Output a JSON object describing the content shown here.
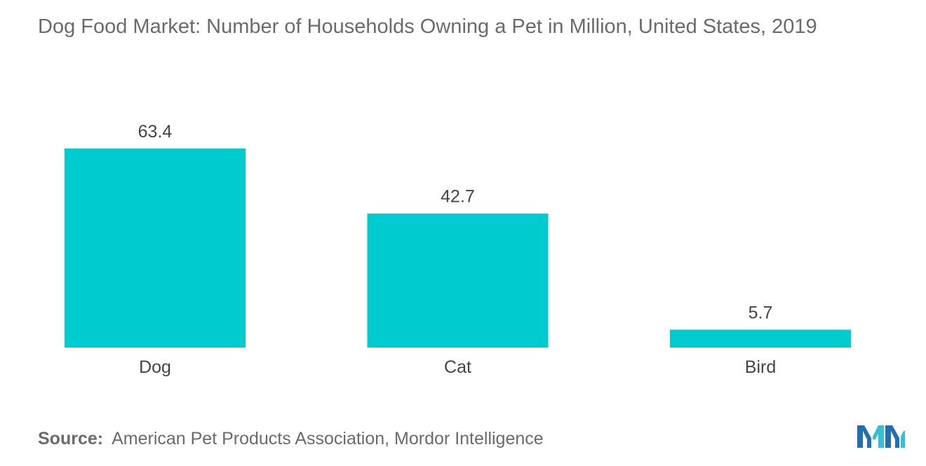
{
  "title": "Dog Food Market: Number of Households Owning a Pet in Million, United States, 2019",
  "source": {
    "label": "Source:",
    "text": "American Pet Products Association, Mordor Intelligence"
  },
  "logo": {
    "icon": "mordor-intelligence-logo-icon",
    "colors": [
      "#1f6fb2",
      "#33c1d6"
    ]
  },
  "colors": {
    "bar": "#00cccf",
    "text": "#6b6b6b",
    "value_label": "#444444"
  },
  "chart_data": {
    "type": "bar",
    "title": "Dog Food Market: Number of Households Owning a Pet in Million, United States, 2019",
    "categories": [
      "Dog",
      "Cat",
      "Bird"
    ],
    "values": [
      63.4,
      42.7,
      5.7
    ],
    "value_labels": [
      "63.4",
      "42.7",
      "5.7"
    ],
    "xlabel": "",
    "ylabel": "",
    "ylim": [
      0,
      63.4
    ],
    "grid": false,
    "legend": "none"
  }
}
